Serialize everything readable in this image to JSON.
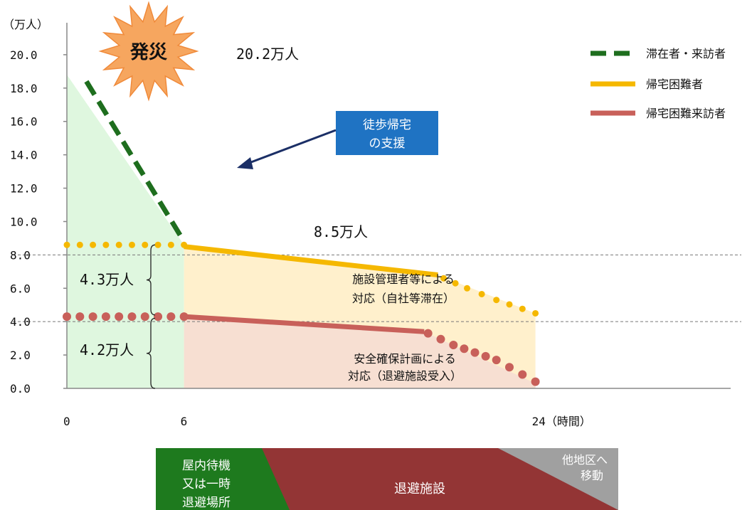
{
  "chart_data": {
    "type": "line",
    "y_unit_label": "（万人）",
    "y_ticks": [
      "20.0",
      "18.0",
      "16.0",
      "14.0",
      "12.0",
      "10.0",
      "8.0",
      "6.0",
      "4.0",
      "2.0",
      "0.0"
    ],
    "ylim": [
      0,
      22
    ],
    "xlim": [
      0,
      34
    ],
    "x_ticks": [
      {
        "value": 0,
        "label": "0"
      },
      {
        "value": 6,
        "label": "6"
      },
      {
        "value": 24,
        "label": "24（時間）"
      }
    ],
    "series": [
      {
        "name": "滞在者・来訪者",
        "color": "#1e6e1e",
        "style": "dashed",
        "points": [
          [
            1,
            18.4
          ],
          [
            6,
            8.8
          ]
        ]
      },
      {
        "name": "帰宅困難者",
        "color": "#f5b800",
        "style": "solid",
        "points": [
          [
            6,
            8.5
          ],
          [
            19,
            6.8
          ]
        ]
      },
      {
        "name": "帰宅困難来訪者",
        "color": "#c8605a",
        "style": "solid",
        "points": [
          [
            6,
            4.3
          ],
          [
            18.3,
            3.4
          ]
        ]
      }
    ],
    "dotted_segments": [
      {
        "color": "#f5b800",
        "points": [
          [
            0,
            8.6
          ],
          [
            6,
            8.6
          ]
        ]
      },
      {
        "color": "#f5b800",
        "points": [
          [
            19.3,
            6.6
          ],
          [
            20.5,
            6.0
          ],
          [
            22,
            5.3
          ],
          [
            24,
            4.5
          ]
        ]
      },
      {
        "color": "#c8605a",
        "points": [
          [
            0,
            4.3
          ],
          [
            6,
            4.3
          ]
        ]
      },
      {
        "color": "#c8605a",
        "points": [
          [
            18.5,
            3.3
          ],
          [
            19.8,
            2.6
          ],
          [
            22,
            1.7
          ],
          [
            24,
            0.4
          ]
        ]
      }
    ],
    "reference_lines": [
      8.0,
      4.0
    ],
    "annotations": {
      "disaster": "発災",
      "peak": "20.2万人",
      "mid": "8.5万人",
      "upper_band": "4.3万人",
      "lower_band": "4.2万人",
      "walk_support": [
        "徒歩帰宅",
        "の支援"
      ],
      "facility_mgr": [
        "施設管理者等による",
        "対応（自社等滞在）"
      ],
      "safety_plan": [
        "安全確保計画による",
        "対応（退避施設受入）"
      ]
    },
    "legend_position": "top-right"
  },
  "colors": {
    "green_area": "#dff7df",
    "yellow_area": "#fff0cc",
    "pink_area": "#f7dfd2",
    "axis": "#888888",
    "walk_box": "#1f73c3",
    "arrow": "#1b2f66",
    "burst_fill": "#f6a65f",
    "burst_stroke": "#f08a3a",
    "phase_green": "#1e7a1e",
    "phase_red": "#933535",
    "phase_gray": "#a0a0a0"
  },
  "phases": {
    "green": [
      "屋内待機",
      "又は一時",
      "退避場所"
    ],
    "red": "退避施設",
    "gray": [
      "他地区へ",
      "移動"
    ]
  }
}
